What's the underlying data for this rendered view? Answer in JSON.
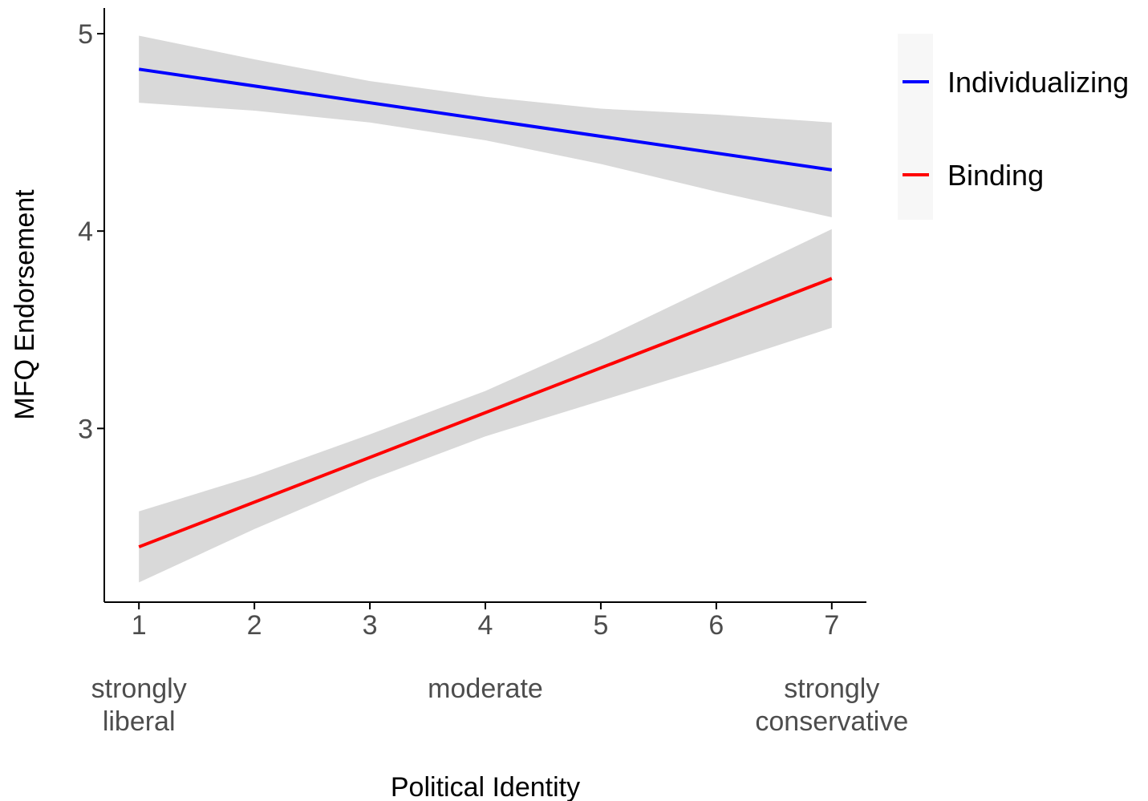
{
  "chart_data": {
    "type": "line",
    "title": "",
    "xlabel": "Political Identity",
    "ylabel": "MFQ Endorsement",
    "xlim": [
      0.7,
      7.3
    ],
    "ylim": [
      2.12,
      5.13
    ],
    "x_ticks": [
      1,
      2,
      3,
      4,
      5,
      6,
      7
    ],
    "y_ticks": [
      3,
      4,
      5
    ],
    "x_anchor_labels": [
      {
        "x": 1,
        "lines": [
          "strongly",
          "liberal"
        ]
      },
      {
        "x": 4,
        "lines": [
          "moderate"
        ]
      },
      {
        "x": 7,
        "lines": [
          "strongly",
          "conservative"
        ]
      }
    ],
    "grid": false,
    "legend_position": "right",
    "series": [
      {
        "name": "Individualizing",
        "color": "#0000ff",
        "x": [
          1,
          7
        ],
        "y": [
          4.82,
          4.31
        ],
        "ci": [
          {
            "x": 1,
            "lower": 4.65,
            "upper": 4.99
          },
          {
            "x": 2,
            "lower": 4.61,
            "upper": 4.87
          },
          {
            "x": 3,
            "lower": 4.55,
            "upper": 4.76
          },
          {
            "x": 4,
            "lower": 4.46,
            "upper": 4.68
          },
          {
            "x": 5,
            "lower": 4.34,
            "upper": 4.62
          },
          {
            "x": 6,
            "lower": 4.2,
            "upper": 4.59
          },
          {
            "x": 7,
            "lower": 4.07,
            "upper": 4.55
          }
        ]
      },
      {
        "name": "Binding",
        "color": "#ff0000",
        "x": [
          1,
          7
        ],
        "y": [
          2.4,
          3.76
        ],
        "ci": [
          {
            "x": 1,
            "lower": 2.22,
            "upper": 2.58
          },
          {
            "x": 2,
            "lower": 2.49,
            "upper": 2.76
          },
          {
            "x": 3,
            "lower": 2.74,
            "upper": 2.97
          },
          {
            "x": 4,
            "lower": 2.96,
            "upper": 3.19
          },
          {
            "x": 5,
            "lower": 3.14,
            "upper": 3.45
          },
          {
            "x": 6,
            "lower": 3.32,
            "upper": 3.73
          },
          {
            "x": 7,
            "lower": 3.51,
            "upper": 4.01
          }
        ]
      }
    ],
    "ribbon_color": "#d9d9d9",
    "axis_color": "#000000",
    "legend_background": "#f7f7f7"
  }
}
